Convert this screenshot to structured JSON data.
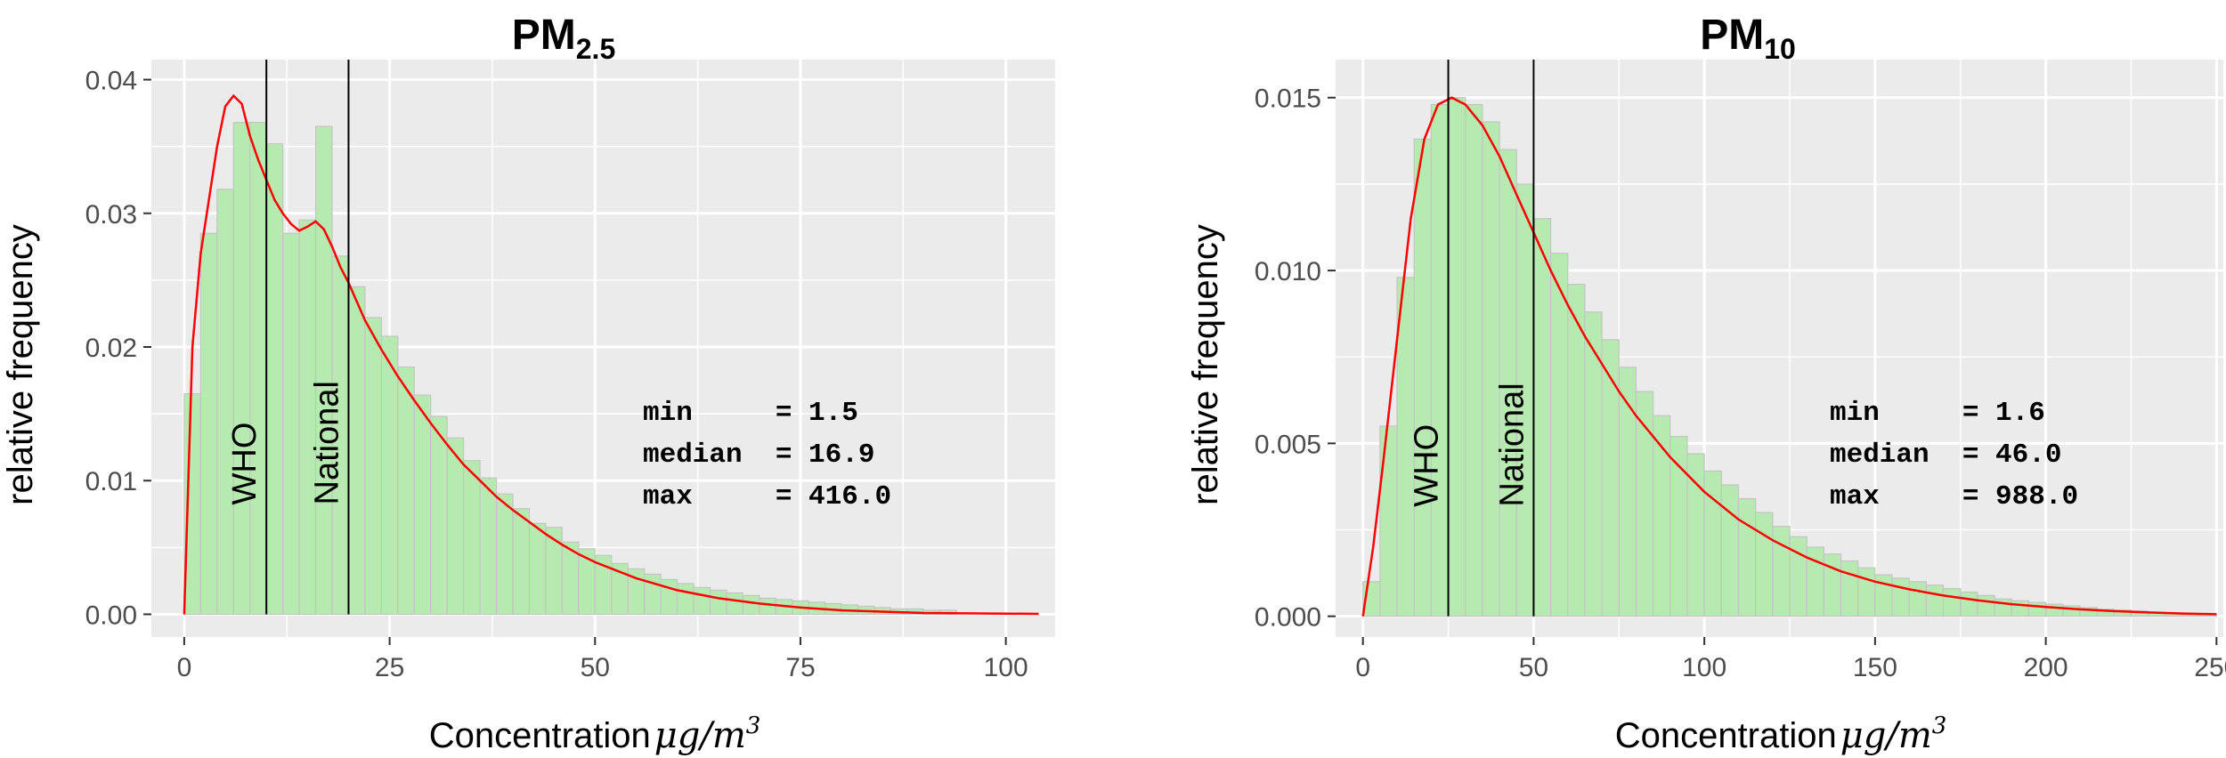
{
  "chart_data": [
    {
      "type": "bar",
      "title": {
        "main": "PM",
        "sub": "2.5"
      },
      "xlabel": {
        "text": "Concentration",
        "unit": "μg/m",
        "unit_sup": "3"
      },
      "ylabel": "relative frequency",
      "xlim": [
        -4,
        106
      ],
      "ylim": [
        -0.0017,
        0.0415
      ],
      "xticks": [
        0,
        25,
        50,
        75,
        100
      ],
      "xtick_labels": [
        "0",
        "25",
        "50",
        "75",
        "100"
      ],
      "yticks": [
        0.0,
        0.01,
        0.02,
        0.03,
        0.04
      ],
      "ytick_labels": [
        "0.00",
        "0.01",
        "0.02",
        "0.03",
        "0.04"
      ],
      "grid": true,
      "bin_width": 2,
      "bins_start": 0,
      "values": [
        0.0165,
        0.0285,
        0.0318,
        0.0368,
        0.0368,
        0.0352,
        0.0285,
        0.0295,
        0.0365,
        0.0268,
        0.0245,
        0.0222,
        0.0208,
        0.0185,
        0.0164,
        0.0148,
        0.0132,
        0.0115,
        0.0102,
        0.009,
        0.0079,
        0.0068,
        0.0065,
        0.0054,
        0.0049,
        0.0044,
        0.0038,
        0.0034,
        0.003,
        0.0026,
        0.0023,
        0.002,
        0.0018,
        0.0016,
        0.0014,
        0.0012,
        0.0011,
        0.001,
        0.0009,
        0.0008,
        0.0007,
        0.0006,
        0.0005,
        0.0004,
        0.0004,
        0.0003,
        0.0003
      ],
      "density": {
        "x": [
          0,
          1,
          2,
          3,
          4,
          5,
          6,
          7,
          8,
          9,
          10,
          11,
          12,
          13,
          14,
          15,
          16,
          17,
          18,
          19,
          20,
          22,
          24,
          26,
          28,
          30,
          32,
          34,
          36,
          38,
          40,
          42,
          44,
          46,
          48,
          50,
          55,
          60,
          65,
          70,
          75,
          80,
          90,
          100,
          104
        ],
        "y": [
          0.0,
          0.02,
          0.027,
          0.031,
          0.035,
          0.038,
          0.0388,
          0.0382,
          0.0358,
          0.034,
          0.0325,
          0.031,
          0.03,
          0.0292,
          0.0287,
          0.029,
          0.0294,
          0.0288,
          0.0275,
          0.026,
          0.0248,
          0.022,
          0.0198,
          0.0178,
          0.016,
          0.0143,
          0.0127,
          0.0112,
          0.01,
          0.0088,
          0.0078,
          0.0069,
          0.006,
          0.0052,
          0.0045,
          0.0039,
          0.0027,
          0.0018,
          0.0012,
          0.0008,
          0.0005,
          0.0003,
          0.0001,
          5e-05,
          3e-05
        ]
      },
      "reference_lines": [
        {
          "x": 10,
          "label": "WHO"
        },
        {
          "x": 20,
          "label": "National"
        }
      ],
      "stats": [
        {
          "name": "min",
          "value": "1.5"
        },
        {
          "name": "median",
          "value": "16.9"
        },
        {
          "name": "max",
          "value": "416.0"
        }
      ],
      "colors": {
        "bar_fill": "#b7eab0",
        "bar_edge": "#c4c4c4",
        "density": "#ff0000",
        "panel_bg": "#ebebeb",
        "grid": "#ffffff",
        "ref_line": "#000000"
      }
    },
    {
      "type": "bar",
      "title": {
        "main": "PM",
        "sub": "10"
      },
      "xlabel": {
        "text": "Concentration",
        "unit": "μg/m",
        "unit_sup": "3"
      },
      "ylabel": "relative frequency",
      "xlim": [
        -8,
        252
      ],
      "ylim": [
        -0.0006,
        0.0161
      ],
      "xticks": [
        0,
        50,
        100,
        150,
        200,
        250
      ],
      "xtick_labels": [
        "0",
        "50",
        "100",
        "150",
        "200",
        "250"
      ],
      "yticks": [
        0.0,
        0.005,
        0.01,
        0.015
      ],
      "ytick_labels": [
        "0.000",
        "0.005",
        "0.010",
        "0.015"
      ],
      "grid": true,
      "bin_width": 5,
      "bins_start": 0,
      "values": [
        0.001,
        0.0055,
        0.0098,
        0.0138,
        0.0148,
        0.015,
        0.0148,
        0.0143,
        0.0135,
        0.0125,
        0.0115,
        0.0105,
        0.0096,
        0.0088,
        0.008,
        0.0072,
        0.0065,
        0.0058,
        0.0052,
        0.0047,
        0.0042,
        0.0038,
        0.0034,
        0.003,
        0.0026,
        0.0023,
        0.002,
        0.0018,
        0.0016,
        0.0014,
        0.0012,
        0.0011,
        0.001,
        0.0009,
        0.0008,
        0.0007,
        0.0006,
        0.0005,
        0.00045,
        0.0004,
        0.00035,
        0.0003,
        0.00025,
        0.0002,
        0.00018,
        0.00015,
        0.00012,
        0.0001,
        8e-05,
        6e-05
      ],
      "density": {
        "x": [
          0,
          3,
          6,
          10,
          14,
          18,
          22,
          26,
          30,
          35,
          40,
          45,
          50,
          55,
          60,
          65,
          70,
          75,
          80,
          90,
          100,
          110,
          120,
          130,
          140,
          150,
          160,
          170,
          180,
          190,
          200,
          210,
          220,
          230,
          240,
          250
        ],
        "y": [
          0.0,
          0.002,
          0.0045,
          0.008,
          0.0115,
          0.0138,
          0.0148,
          0.015,
          0.0148,
          0.0142,
          0.0133,
          0.0122,
          0.0111,
          0.01,
          0.009,
          0.0081,
          0.0073,
          0.0065,
          0.0058,
          0.0046,
          0.0036,
          0.0028,
          0.0022,
          0.0017,
          0.0013,
          0.001,
          0.00078,
          0.0006,
          0.00046,
          0.00035,
          0.00027,
          0.0002,
          0.00015,
          0.00011,
          8e-05,
          6e-05
        ]
      },
      "reference_lines": [
        {
          "x": 25,
          "label": "WHO"
        },
        {
          "x": 50,
          "label": "National"
        }
      ],
      "stats": [
        {
          "name": "min",
          "value": "1.6"
        },
        {
          "name": "median",
          "value": "46.0"
        },
        {
          "name": "max",
          "value": "988.0"
        }
      ],
      "colors": {
        "bar_fill": "#b7eab0",
        "bar_edge": "#c4c4c4",
        "density": "#ff0000",
        "panel_bg": "#ebebeb",
        "grid": "#ffffff",
        "ref_line": "#000000"
      }
    }
  ]
}
